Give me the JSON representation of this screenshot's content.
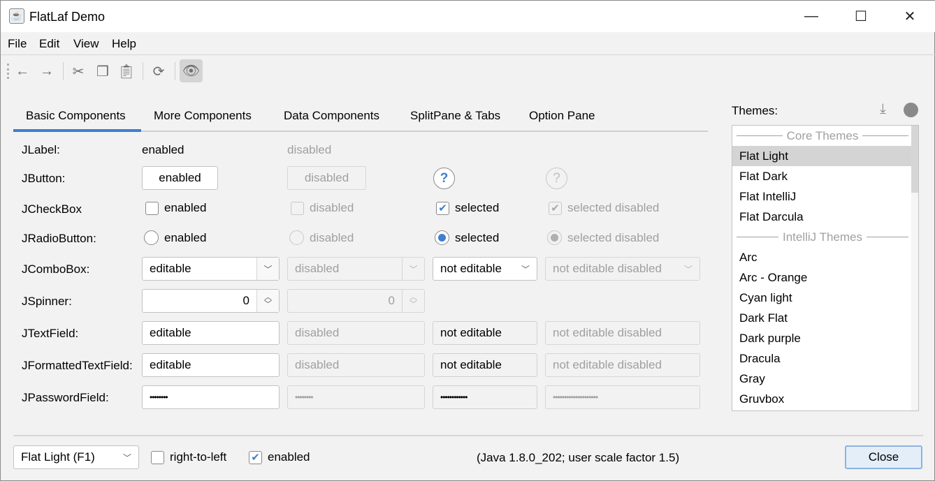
{
  "window": {
    "title": "FlatLaf Demo",
    "minimize": "—",
    "maximize": "☐",
    "close": "✕"
  },
  "menu": [
    "File",
    "Edit",
    "View",
    "Help"
  ],
  "tabs": [
    "Basic Components",
    "More Components",
    "Data Components",
    "SplitPane & Tabs",
    "Option Pane"
  ],
  "rows": {
    "jlabel": {
      "label": "JLabel:",
      "enabled": "enabled",
      "disabled": "disabled"
    },
    "jbutton": {
      "label": "JButton:",
      "enabled": "enabled",
      "disabled": "disabled",
      "help": "?"
    },
    "jcheckbox": {
      "label": "JCheckBox",
      "enabled": "enabled",
      "disabled": "disabled",
      "selected": "selected",
      "selected_disabled": "selected disabled"
    },
    "jradio": {
      "label": "JRadioButton:",
      "enabled": "enabled",
      "disabled": "disabled",
      "selected": "selected",
      "selected_disabled": "selected disabled"
    },
    "jcombo": {
      "label": "JComboBox:",
      "editable": "editable",
      "disabled": "disabled",
      "not_editable": "not editable",
      "not_editable_disabled": "not editable disabled"
    },
    "jspinner": {
      "label": "JSpinner:",
      "value": "0",
      "disabled_value": "0"
    },
    "jtextfield": {
      "label": "JTextField:",
      "editable": "editable",
      "disabled": "disabled",
      "not_editable": "not editable",
      "not_editable_disabled": "not editable disabled"
    },
    "jformatted": {
      "label": "JFormattedTextField:",
      "editable": "editable",
      "disabled": "disabled",
      "not_editable": "not editable",
      "not_editable_disabled": "not editable disabled"
    },
    "jpassword": {
      "label": "JPasswordField:",
      "editable": "••••••••",
      "disabled": "••••••••",
      "not_editable": "••••••••••••",
      "not_editable_disabled": "••••••••••••••••••••"
    }
  },
  "themes": {
    "label": "Themes:",
    "items": [
      {
        "header": "Core Themes"
      },
      {
        "name": "Flat Light",
        "selected": true
      },
      {
        "name": "Flat Dark"
      },
      {
        "name": "Flat IntelliJ"
      },
      {
        "name": "Flat Darcula"
      },
      {
        "header": "IntelliJ Themes"
      },
      {
        "name": "Arc"
      },
      {
        "name": "Arc - Orange"
      },
      {
        "name": "Cyan light"
      },
      {
        "name": "Dark Flat"
      },
      {
        "name": "Dark purple"
      },
      {
        "name": "Dracula"
      },
      {
        "name": "Gray"
      },
      {
        "name": "Gruvbox"
      }
    ]
  },
  "bottom": {
    "theme_combo": "Flat Light (F1)",
    "rtl": "right-to-left",
    "enabled": "enabled",
    "info": "(Java 1.8.0_202;  user scale factor 1.5)",
    "close": "Close"
  },
  "colors": {
    "accent": "#3f7ed0",
    "selection": "#d4d4d4"
  }
}
